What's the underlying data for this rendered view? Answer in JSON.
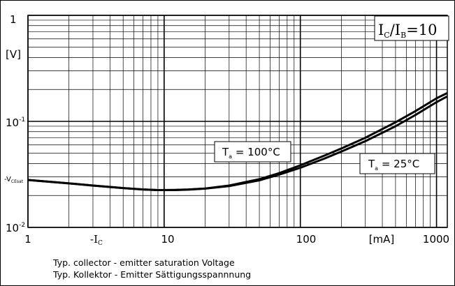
{
  "chart_data": {
    "type": "line",
    "x_scale": "log",
    "y_scale": "log",
    "xlim": [
      1,
      1200
    ],
    "ylim": [
      0.01,
      1
    ],
    "grid": true,
    "x_ticks": [
      "1",
      "10",
      "100",
      "1000"
    ],
    "x_unit_label": "[mA]",
    "x_axis_label": "-I",
    "x_axis_label_sub": "C",
    "y_ticks": [
      {
        "base": "1",
        "exp": ""
      },
      {
        "base": "10",
        "exp": "-1"
      },
      {
        "base": "10",
        "exp": "-2"
      }
    ],
    "y_unit_label": "[V]",
    "y_axis_label": "-V",
    "y_axis_label_sub": "CEsat",
    "condition": {
      "a": "I",
      "a_sub": "C",
      "sep": "/",
      "b": "I",
      "b_sub": "B",
      "rest": "=10"
    },
    "annotations": [
      {
        "series": "100",
        "prefix": "T",
        "sub": "a",
        "text": " = 100°C"
      },
      {
        "series": "25",
        "prefix": "T",
        "sub": "a",
        "text": " = 25°C"
      }
    ],
    "series": [
      {
        "x": [
          1,
          2,
          3,
          5,
          7,
          9,
          12,
          15,
          20,
          30,
          50,
          70,
          100,
          150,
          200,
          300,
          500,
          700,
          1000,
          1200
        ],
        "y": [
          0.028,
          0.026,
          0.0248,
          0.0235,
          0.0228,
          0.0225,
          0.0226,
          0.0228,
          0.0233,
          0.0248,
          0.0285,
          0.0325,
          0.0385,
          0.0475,
          0.0555,
          0.07,
          0.098,
          0.125,
          0.165,
          0.185
        ]
      },
      {
        "x": [
          1,
          2,
          3,
          5,
          7,
          9,
          12,
          15,
          20,
          30,
          50,
          70,
          100,
          150,
          200,
          300,
          500,
          700,
          1000,
          1200
        ],
        "y": [
          0.028,
          0.026,
          0.0248,
          0.0235,
          0.0228,
          0.0225,
          0.0225,
          0.0227,
          0.0232,
          0.0245,
          0.0278,
          0.0315,
          0.0365,
          0.0445,
          0.052,
          0.065,
          0.09,
          0.115,
          0.152,
          0.172
        ]
      }
    ]
  },
  "caption": {
    "line1": "Typ. collector - emitter saturation Voltage",
    "line2": "Typ. Kollektor - Emitter Sättigungsspannnung"
  }
}
